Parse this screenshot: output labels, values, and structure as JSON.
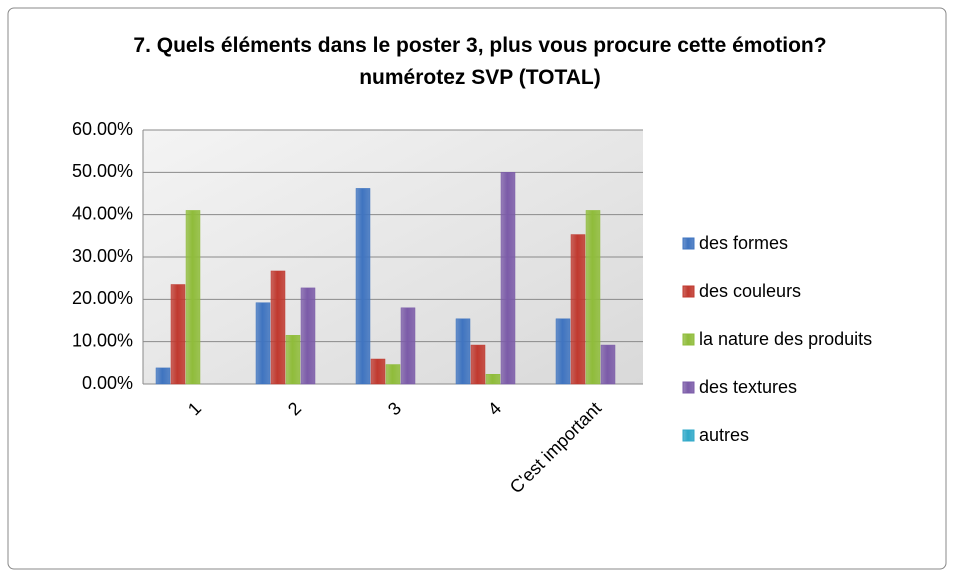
{
  "chart_data": {
    "type": "bar",
    "title": "7. Quels éléments dans le poster 3, plus vous procure cette émotion?numérotez SVP (TOTAL)",
    "categories": [
      "1",
      "2",
      "3",
      "4",
      "C'est important"
    ],
    "series": [
      {
        "name": "des formes",
        "color": "#3f74c0",
        "values": [
          3.8,
          19.2,
          46.2,
          15.4,
          15.4
        ]
      },
      {
        "name": "des couleurs",
        "color": "#c0392f",
        "values": [
          23.5,
          26.7,
          5.9,
          9.2,
          35.3
        ]
      },
      {
        "name": "la nature des produits",
        "color": "#8fbc3a",
        "values": [
          41,
          11.5,
          4.6,
          2.3,
          41
        ]
      },
      {
        "name": "des textures",
        "color": "#7b5ba8",
        "values": [
          0,
          22.7,
          18,
          50,
          9.2
        ]
      },
      {
        "name": "autres",
        "color": "#2fa8c8",
        "values": [
          0,
          0,
          0,
          0,
          0
        ]
      }
    ],
    "ylim": [
      0,
      60
    ],
    "yticks": [
      {
        "value": 0,
        "label": "0.00%"
      },
      {
        "value": 10,
        "label": "10.00%"
      },
      {
        "value": 20,
        "label": "20.00%"
      },
      {
        "value": 30,
        "label": "30.00%"
      },
      {
        "value": 40,
        "label": "40.00%"
      },
      {
        "value": 50,
        "label": "50.00%"
      },
      {
        "value": 60,
        "label": "60.00%"
      }
    ],
    "grid": true,
    "legend": "right"
  }
}
